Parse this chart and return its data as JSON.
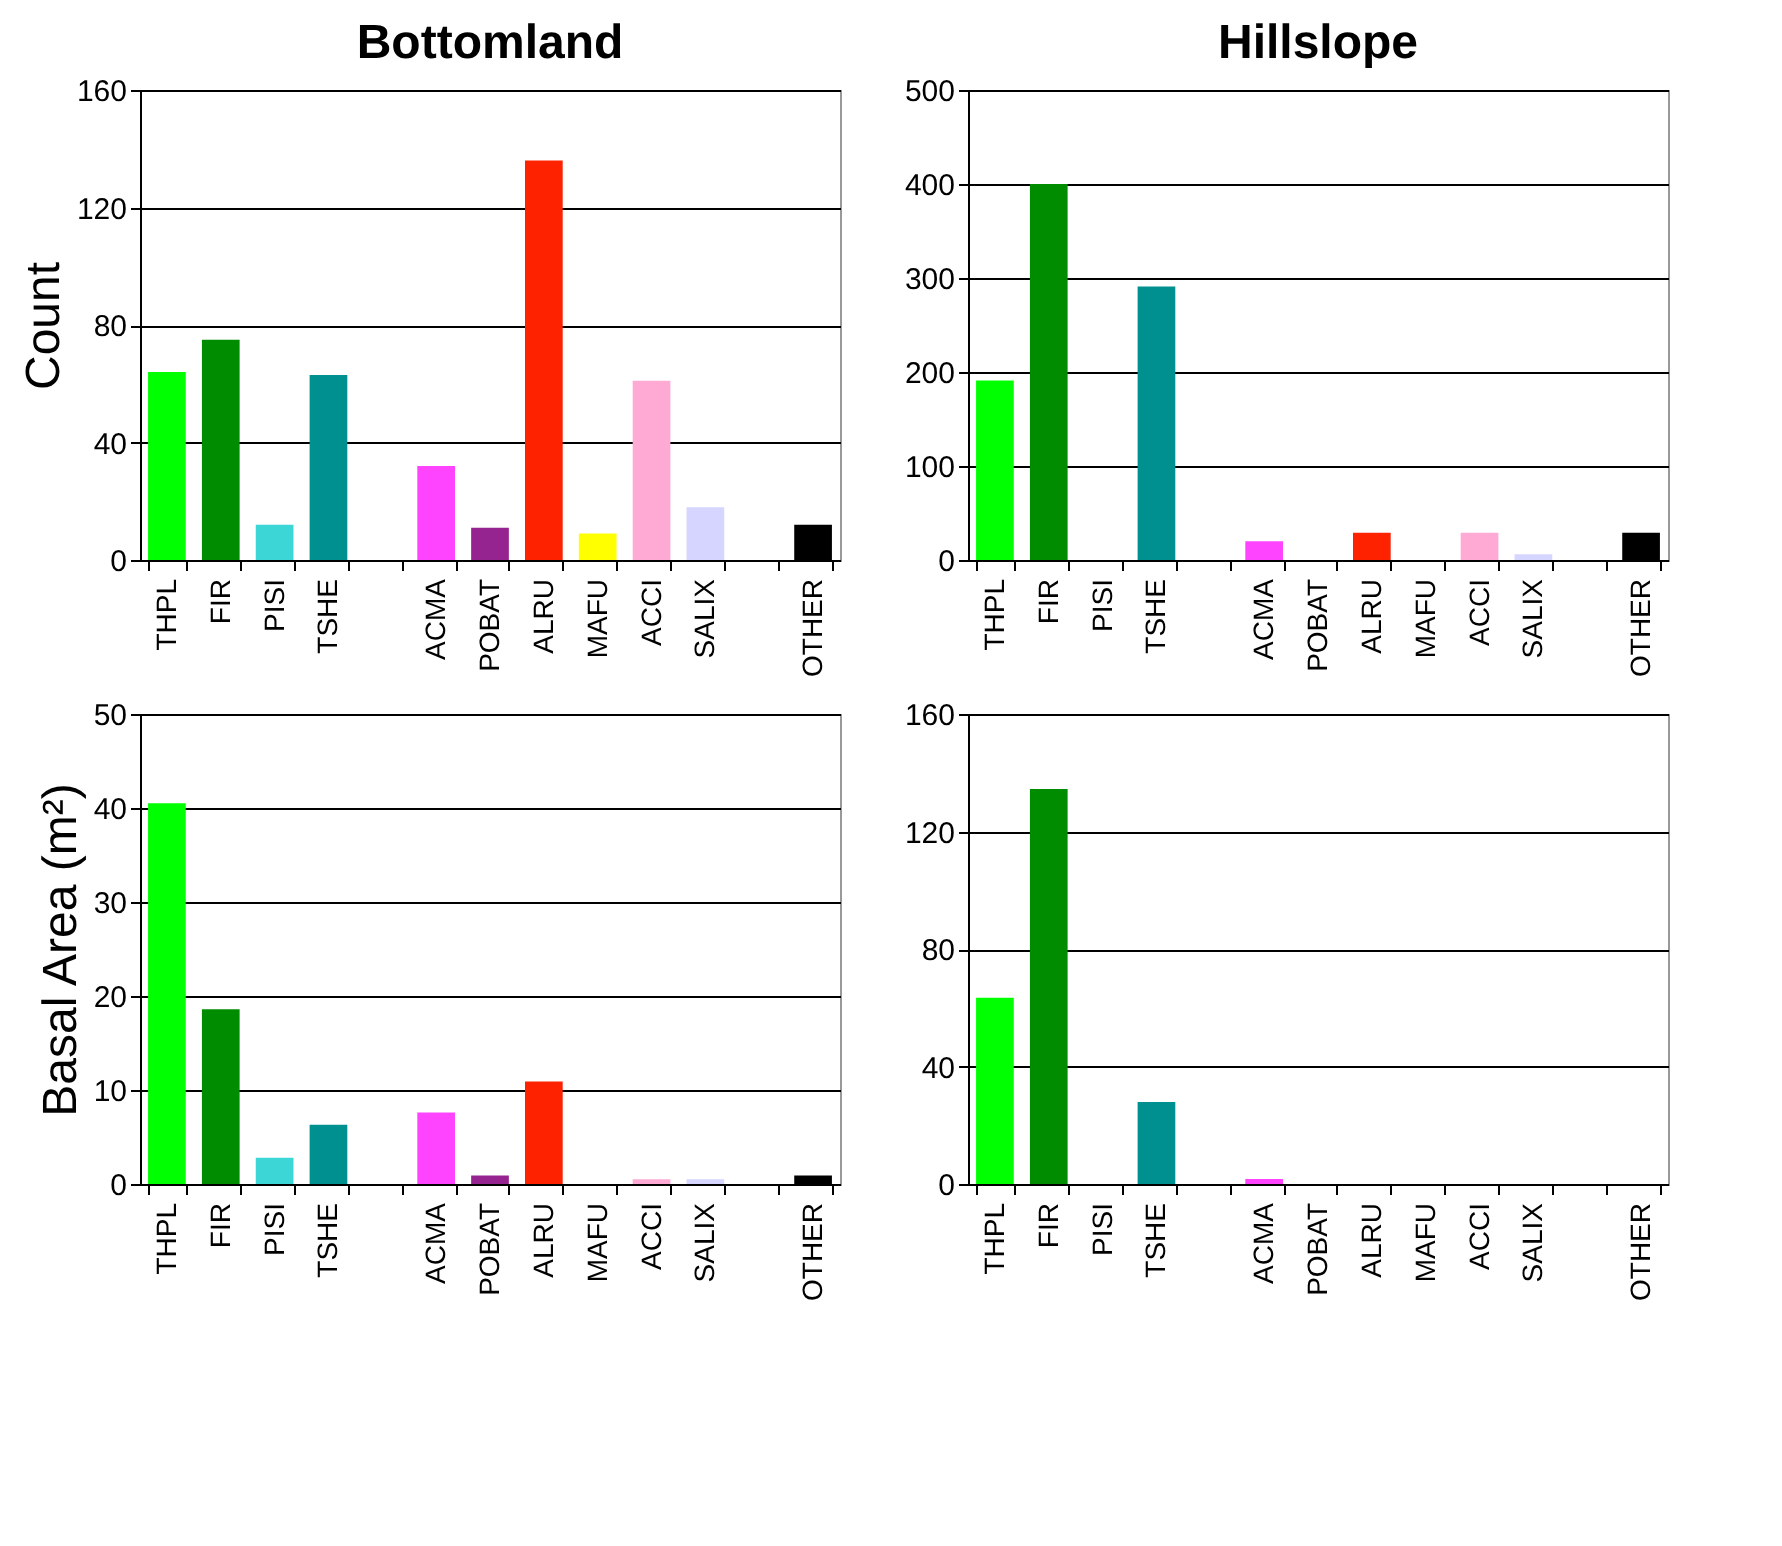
{
  "chart_data": [
    {
      "type": "bar",
      "title": "Bottomland",
      "ylabel": "Count",
      "categories": [
        "THPL",
        "FIR",
        "PISI",
        "TSHE",
        null,
        "ACMA",
        "POBAT",
        "ALRU",
        "MAFU",
        "ACCI",
        "SALIX",
        null,
        "OTHER"
      ],
      "values": [
        64,
        75,
        12,
        63,
        null,
        32,
        11,
        136,
        9,
        61,
        18,
        null,
        12
      ],
      "colors": [
        "#00ff00",
        "#008c00",
        "#3cd6d6",
        "#009090",
        null,
        "#ff44ff",
        "#952390",
        "#ff2200",
        "#ffff00",
        "#ffaad5",
        "#d5d5ff",
        null,
        "#000000"
      ],
      "ylim": [
        0,
        160
      ],
      "yticks": [
        0,
        40,
        80,
        120,
        160
      ],
      "grid": "y"
    },
    {
      "type": "bar",
      "title": "Hillslope",
      "categories": [
        "THPL",
        "FIR",
        "PISI",
        "TSHE",
        null,
        "ACMA",
        "POBAT",
        "ALRU",
        "MAFU",
        "ACCI",
        "SALIX",
        null,
        "OTHER"
      ],
      "values": [
        191,
        400,
        0,
        291,
        null,
        20,
        0,
        29,
        0,
        29,
        6,
        null,
        29
      ],
      "colors": [
        "#00ff00",
        "#008c00",
        "#3cd6d6",
        "#009090",
        null,
        "#ff44ff",
        "#952390",
        "#ff2200",
        "#ffff00",
        "#ffaad5",
        "#d5d5ff",
        null,
        "#000000"
      ],
      "ylim": [
        0,
        500
      ],
      "yticks": [
        0,
        100,
        200,
        300,
        400,
        500
      ],
      "grid": "y"
    },
    {
      "type": "bar",
      "ylabel": "Basal Area (m²)",
      "categories": [
        "THPL",
        "FIR",
        "PISI",
        "TSHE",
        null,
        "ACMA",
        "POBAT",
        "ALRU",
        "MAFU",
        "ACCI",
        "SALIX",
        null,
        "OTHER"
      ],
      "values": [
        40.5,
        18.6,
        2.8,
        6.3,
        null,
        7.6,
        0.9,
        10.9,
        0,
        0.5,
        0.5,
        null,
        0.9
      ],
      "colors": [
        "#00ff00",
        "#008c00",
        "#3cd6d6",
        "#009090",
        null,
        "#ff44ff",
        "#952390",
        "#ff2200",
        "#ffff00",
        "#ffaad5",
        "#d5d5ff",
        null,
        "#000000"
      ],
      "ylim": [
        0,
        50
      ],
      "yticks": [
        0,
        10,
        20,
        30,
        40,
        50
      ],
      "grid": "y"
    },
    {
      "type": "bar",
      "categories": [
        "THPL",
        "FIR",
        "PISI",
        "TSHE",
        null,
        "ACMA",
        "POBAT",
        "ALRU",
        "MAFU",
        "ACCI",
        "SALIX",
        null,
        "OTHER"
      ],
      "values": [
        63.4,
        134.5,
        0,
        27.9,
        null,
        1.7,
        0,
        0,
        0,
        0,
        0,
        null,
        0
      ],
      "colors": [
        "#00ff00",
        "#008c00",
        "#3cd6d6",
        "#009090",
        null,
        "#ff44ff",
        "#952390",
        "#ff2200",
        "#ffff00",
        "#ffaad5",
        "#d5d5ff",
        null,
        "#000000"
      ],
      "ylim": [
        0,
        160
      ],
      "yticks": [
        0,
        40,
        80,
        120,
        160
      ],
      "grid": "y"
    }
  ]
}
